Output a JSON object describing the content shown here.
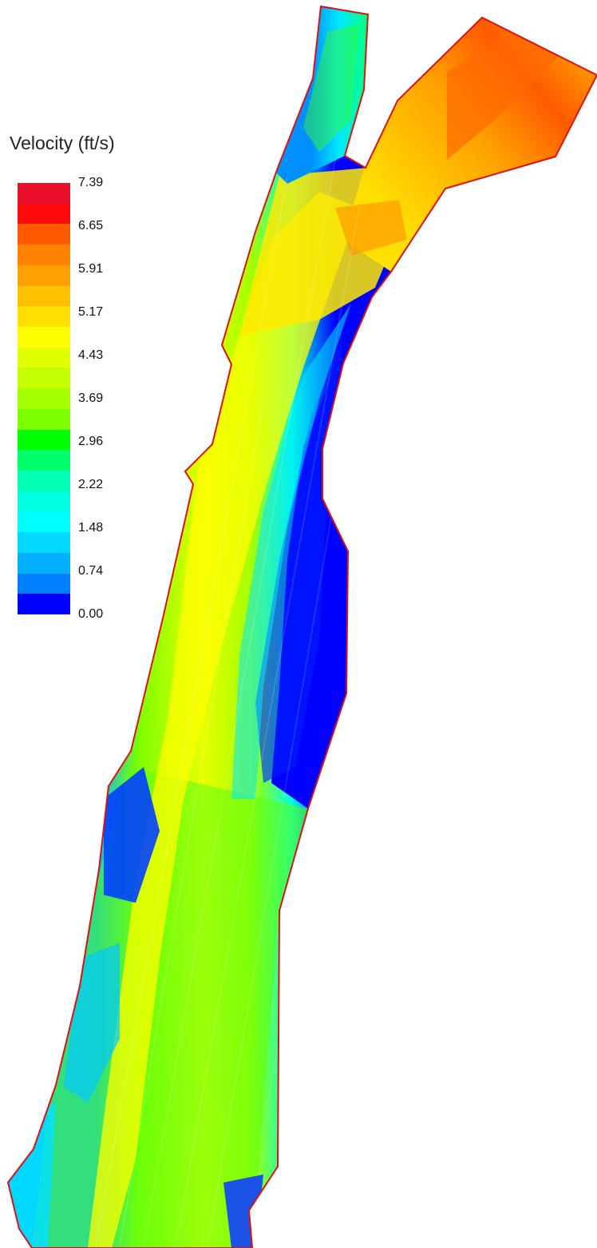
{
  "legend": {
    "title": "Velocity (ft/s)",
    "ticks": [
      "7.39",
      "6.65",
      "5.91",
      "5.17",
      "4.43",
      "3.69",
      "2.96",
      "2.22",
      "1.48",
      "0.74",
      "0.00"
    ],
    "colors": [
      "#e8102a",
      "#ff0a0a",
      "#ff5a00",
      "#ff8200",
      "#ffa000",
      "#ffc000",
      "#ffe000",
      "#ffff00",
      "#e0ff00",
      "#c4ff00",
      "#a4ff00",
      "#7cff00",
      "#00ff00",
      "#00ff6a",
      "#00ffb4",
      "#00ffe0",
      "#00ffff",
      "#00d8ff",
      "#00b0ff",
      "#0080ff",
      "#0000ff"
    ]
  }
}
